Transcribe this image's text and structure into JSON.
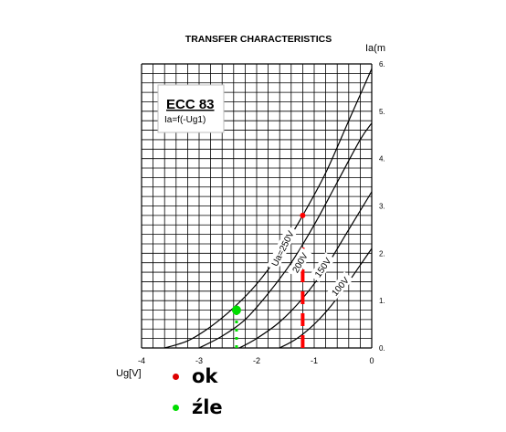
{
  "chart_data": {
    "type": "line",
    "title": "TRANSFER CHARACTERISTICS",
    "xlabel": "Ug[V]",
    "ylabel": "Ia(m",
    "xlim": [
      -4,
      0
    ],
    "ylim": [
      0,
      6
    ],
    "grid": true,
    "x_ticks": [
      {
        "value": -4,
        "label": "-4"
      },
      {
        "value": -3,
        "label": "-3"
      },
      {
        "value": -2,
        "label": "-2"
      },
      {
        "value": -1,
        "label": "-1"
      },
      {
        "value": 0,
        "label": "0"
      }
    ],
    "y_ticks": [
      {
        "value": 0,
        "label": "0."
      },
      {
        "value": 1,
        "label": "1."
      },
      {
        "value": 2,
        "label": "2."
      },
      {
        "value": 3,
        "label": "3."
      },
      {
        "value": 4,
        "label": "4."
      },
      {
        "value": 5,
        "label": "5."
      },
      {
        "value": 6,
        "label": "6."
      }
    ],
    "tube_box": {
      "name": "ECC 83",
      "formula": "Ia=f(-Ug1)"
    },
    "series": [
      {
        "name": "Ua=250V",
        "x": [
          -3.6,
          -3.2,
          -2.8,
          -2.4,
          -2.0,
          -1.6,
          -1.2,
          -0.8,
          -0.4,
          0.0
        ],
        "y": [
          0.0,
          0.15,
          0.45,
          0.85,
          1.35,
          2.0,
          2.8,
          3.7,
          4.8,
          5.9
        ]
      },
      {
        "name": "200V",
        "x": [
          -3.0,
          -2.6,
          -2.2,
          -1.8,
          -1.4,
          -1.0,
          -0.6,
          -0.2,
          0.0
        ],
        "y": [
          0.0,
          0.25,
          0.6,
          1.15,
          1.8,
          2.6,
          3.5,
          4.4,
          4.75
        ]
      },
      {
        "name": "150V",
        "x": [
          -2.3,
          -2.0,
          -1.6,
          -1.2,
          -0.8,
          -0.4,
          0.0
        ],
        "y": [
          0.0,
          0.2,
          0.55,
          1.05,
          1.7,
          2.5,
          3.3
        ]
      },
      {
        "name": "100V",
        "x": [
          -1.6,
          -1.3,
          -1.0,
          -0.7,
          -0.4,
          -0.2,
          0.0
        ],
        "y": [
          0.0,
          0.2,
          0.5,
          0.9,
          1.4,
          1.75,
          2.1
        ]
      }
    ],
    "markers": [
      {
        "x": -1.2,
        "y": 2.8,
        "color": "#ff0000"
      },
      {
        "x": -2.35,
        "y": 0.8,
        "color": "#00dd00"
      }
    ],
    "dashed_lines": [
      {
        "x": -1.2,
        "y": [
          0.0,
          2.2
        ],
        "color": "#ff0000"
      },
      {
        "x": -2.35,
        "y": [
          0.0,
          0.75
        ],
        "color": "#00dd00"
      }
    ]
  },
  "legend": [
    {
      "label": "ok",
      "color": "#dd0000"
    },
    {
      "label": "źle",
      "color": "#00dd00"
    }
  ]
}
